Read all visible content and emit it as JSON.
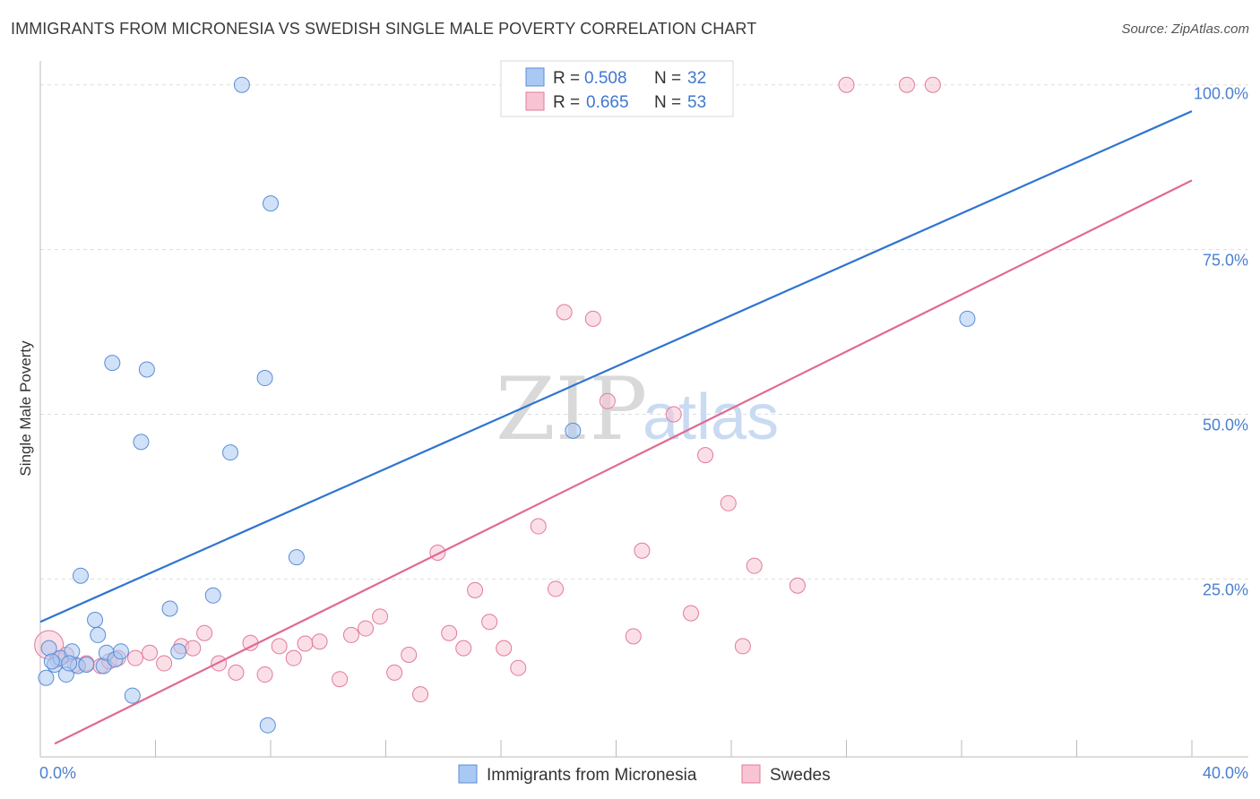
{
  "header": {
    "title": "IMMIGRANTS FROM MICRONESIA VS SWEDISH SINGLE MALE POVERTY CORRELATION CHART",
    "source": "Source: ZipAtlas.com"
  },
  "watermark": {
    "zip": "ZIP",
    "atlas": "atlas"
  },
  "legend": {
    "rows": [
      {
        "r_label": "R =",
        "r_value": "0.508",
        "n_label": "N =",
        "n_value": "32",
        "color": "#a9c8f3",
        "stroke": "#5b8ed6"
      },
      {
        "r_label": "R =",
        "r_value": "0.665",
        "n_label": "N =",
        "n_value": "53",
        "color": "#f8c4d3",
        "stroke": "#e27a9c"
      }
    ]
  },
  "chart_data": {
    "type": "scatter",
    "title": "IMMIGRANTS FROM MICRONESIA VS SWEDISH SINGLE MALE POVERTY CORRELATION CHART",
    "xlabel": "",
    "ylabel": "Single Male Poverty",
    "xlim": [
      0,
      40
    ],
    "ylim": [
      -2,
      102
    ],
    "x_tick_labels": [
      "0.0%",
      "40.0%"
    ],
    "y_ticks": [
      25,
      50,
      75,
      100
    ],
    "y_tick_labels": [
      "25.0%",
      "50.0%",
      "75.0%",
      "100.0%"
    ],
    "grid": true,
    "series": [
      {
        "name": "Immigrants from Micronesia",
        "color": "#a9c8f3",
        "stroke": "#5b8ed6",
        "trend_color": "#2f74d0",
        "trend": [
          [
            0,
            18.5
          ],
          [
            40,
            96
          ]
        ],
        "points": [
          [
            0.2,
            10.0
          ],
          [
            0.3,
            14.5
          ],
          [
            0.5,
            12.0
          ],
          [
            0.7,
            13.0
          ],
          [
            0.9,
            10.5
          ],
          [
            1.1,
            14.0
          ],
          [
            1.3,
            11.8
          ],
          [
            1.6,
            12.0
          ],
          [
            1.4,
            25.5
          ],
          [
            1.9,
            18.8
          ],
          [
            2.0,
            16.5
          ],
          [
            2.2,
            11.8
          ],
          [
            2.3,
            13.8
          ],
          [
            2.6,
            12.8
          ],
          [
            2.8,
            14.0
          ],
          [
            3.2,
            7.3
          ],
          [
            3.5,
            45.8
          ],
          [
            3.7,
            56.8
          ],
          [
            4.5,
            20.5
          ],
          [
            4.8,
            14.0
          ],
          [
            6.0,
            22.5
          ],
          [
            6.6,
            44.2
          ],
          [
            7.0,
            100.0
          ],
          [
            7.8,
            55.5
          ],
          [
            8.0,
            82.0
          ],
          [
            7.9,
            2.8
          ],
          [
            8.9,
            28.3
          ],
          [
            2.5,
            57.8
          ],
          [
            18.5,
            47.5
          ],
          [
            32.2,
            64.5
          ],
          [
            0.4,
            12.5
          ],
          [
            1.0,
            12.2
          ]
        ]
      },
      {
        "name": "Swedes",
        "color": "#f8c4d3",
        "stroke": "#e27a9c",
        "trend_color": "#e06a93",
        "trend": [
          [
            0.5,
            0
          ],
          [
            40,
            85.5
          ]
        ],
        "points": [
          [
            0.3,
            15.0
          ],
          [
            0.6,
            12.8
          ],
          [
            0.9,
            13.5
          ],
          [
            1.2,
            12.0
          ],
          [
            1.6,
            12.2
          ],
          [
            2.1,
            11.8
          ],
          [
            2.4,
            12.5
          ],
          [
            2.7,
            13.0
          ],
          [
            3.3,
            13.0
          ],
          [
            3.8,
            13.8
          ],
          [
            4.3,
            12.2
          ],
          [
            4.9,
            14.8
          ],
          [
            5.3,
            14.5
          ],
          [
            5.7,
            16.8
          ],
          [
            6.2,
            12.2
          ],
          [
            6.8,
            10.8
          ],
          [
            7.3,
            15.3
          ],
          [
            7.8,
            10.5
          ],
          [
            8.3,
            14.8
          ],
          [
            8.8,
            13.0
          ],
          [
            9.2,
            15.2
          ],
          [
            9.7,
            15.5
          ],
          [
            10.4,
            9.8
          ],
          [
            10.8,
            16.5
          ],
          [
            11.3,
            17.5
          ],
          [
            11.8,
            19.3
          ],
          [
            12.3,
            10.8
          ],
          [
            12.8,
            13.5
          ],
          [
            13.2,
            7.5
          ],
          [
            13.8,
            29.0
          ],
          [
            14.2,
            16.8
          ],
          [
            14.7,
            14.5
          ],
          [
            15.1,
            23.3
          ],
          [
            15.6,
            18.5
          ],
          [
            16.1,
            14.5
          ],
          [
            16.6,
            11.5
          ],
          [
            17.3,
            33.0
          ],
          [
            17.9,
            23.5
          ],
          [
            18.2,
            65.5
          ],
          [
            19.2,
            64.5
          ],
          [
            19.7,
            52.0
          ],
          [
            20.6,
            16.3
          ],
          [
            20.9,
            29.3
          ],
          [
            22.0,
            50.0
          ],
          [
            22.6,
            19.8
          ],
          [
            23.1,
            43.8
          ],
          [
            23.9,
            36.5
          ],
          [
            24.4,
            14.8
          ],
          [
            24.8,
            27.0
          ],
          [
            26.3,
            24.0
          ],
          [
            28.0,
            100.0
          ],
          [
            30.1,
            100.0
          ],
          [
            31.0,
            100.0
          ]
        ]
      }
    ]
  },
  "bottom_legend": {
    "items": [
      {
        "label": "Immigrants from Micronesia",
        "color": "#a9c8f3",
        "stroke": "#5b8ed6"
      },
      {
        "label": "Swedes",
        "color": "#f8c4d3",
        "stroke": "#e27a9c"
      }
    ]
  }
}
